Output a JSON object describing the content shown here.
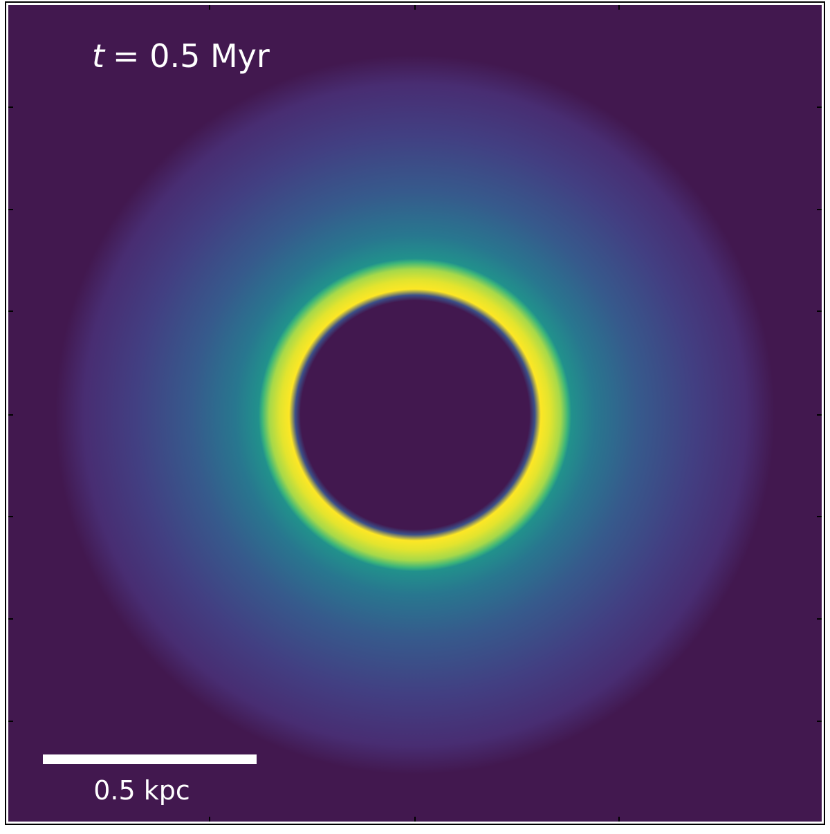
{
  "time_label": {
    "symbol": "t",
    "text": "= 0.5 Myr"
  },
  "scale_bar": {
    "label": "0.5 kpc"
  }
}
